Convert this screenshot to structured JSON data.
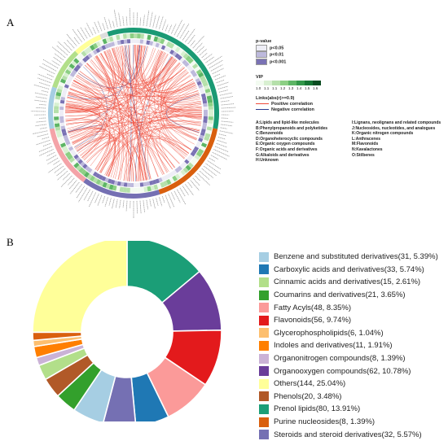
{
  "panel_a": {
    "label": "A",
    "pvalue_title": "p-value",
    "pvalue_items": [
      {
        "label": "p<0.05",
        "color": "#eeeef6"
      },
      {
        "label": "p<0.01",
        "color": "#bdb9dc"
      },
      {
        "label": "p<0.001",
        "color": "#7a72b4"
      }
    ],
    "vip_title": "VIP",
    "vip_ticks": [
      "1.0",
      "1.1",
      "1.1",
      "1.2",
      "1.3",
      "1.4",
      "1.5",
      "1.6"
    ],
    "vip_colors": [
      "#f3fbf1",
      "#d8f0d1",
      "#b5e0aa",
      "#8ccf84",
      "#5db565",
      "#33974a",
      "#167433",
      "#0a4c21"
    ],
    "links_title": "Links(abs(r)>=0.9)",
    "positive_label": "Positive correlation",
    "negative_label": "Negative correlation",
    "positive_color": "#ef4b3a",
    "negative_color": "#2b3a8f",
    "classes_left": [
      "A:Lipids and lipid-like molecules",
      "B:Phenylpropanoids and polyketides",
      "C:Benzenoids",
      "D:Organoheterocyclic compounds",
      "E:Organic oxygen compounds",
      "F:Organic acids and derivatives",
      "G:Alkaloids and derivatives",
      "H:Unknown"
    ],
    "classes_right": [
      "I:Lignans, neolignans and related compounds",
      "J:Nucleosides, nucleotides, and analogues",
      "K:Organic nitrogen compounds",
      "L:Anthracenes",
      "M:Flavonoids",
      "N:Kavalactones",
      "O:Stilbenes"
    ],
    "class_sectors": [
      {
        "class": "A",
        "color": "#1a9a74"
      },
      {
        "class": "B",
        "color": "#d95f0e"
      },
      {
        "class": "C",
        "color": "#7570b3"
      },
      {
        "class": "D",
        "color": "#f4a3a8"
      },
      {
        "class": "E",
        "color": "#a6cee3"
      },
      {
        "class": "F",
        "color": "#b2df8a"
      },
      {
        "class": "G",
        "color": "#ffff99"
      },
      {
        "class": "H",
        "color": "#dddddd"
      }
    ]
  },
  "panel_b": {
    "label": "B"
  },
  "chart_data": {
    "type": "pie",
    "donut": true,
    "title": "",
    "slices": [
      {
        "name": "Prenol lipids",
        "count": 80,
        "percent": 13.91,
        "color": "#1b9e77",
        "legend": "Prenol lipids(80, 13.91%)"
      },
      {
        "name": "Organooxygen compounds",
        "count": 62,
        "percent": 10.78,
        "color": "#6a3d9a",
        "legend": "Organooxygen compounds(62, 10.78%)"
      },
      {
        "name": "Flavonoids",
        "count": 56,
        "percent": 9.74,
        "color": "#e31a1c",
        "legend": "Flavonoids(56, 9.74%)"
      },
      {
        "name": "Fatty Acyls",
        "count": 48,
        "percent": 8.35,
        "color": "#fb9a99",
        "legend": "Fatty Acyls(48, 8.35%)"
      },
      {
        "name": "Carboxylic acids and derivatives",
        "count": 33,
        "percent": 5.74,
        "color": "#1f78b4",
        "legend": "Carboxylic acids and derivatives(33, 5.74%)"
      },
      {
        "name": "Steroids and steroid derivatives",
        "count": 32,
        "percent": 5.57,
        "color": "#7570b3",
        "legend": "Steroids and steroid derivatives(32, 5.57%)"
      },
      {
        "name": "Benzene and substituted derivatives",
        "count": 31,
        "percent": 5.39,
        "color": "#a6cee3",
        "legend": "Benzene and substituted derivatives(31, 5.39%)"
      },
      {
        "name": "Coumarins and derivatives",
        "count": 21,
        "percent": 3.65,
        "color": "#33a02c",
        "legend": "Coumarins and derivatives(21, 3.65%)"
      },
      {
        "name": "Phenols",
        "count": 20,
        "percent": 3.48,
        "color": "#b15928",
        "legend": "Phenols(20, 3.48%)"
      },
      {
        "name": "Cinnamic acids and derivatives",
        "count": 15,
        "percent": 2.61,
        "color": "#b2df8a",
        "legend": "Cinnamic acids and derivatives(15, 2.61%)"
      },
      {
        "name": "Organonitrogen compounds",
        "count": 8,
        "percent": 1.39,
        "color": "#cab2d6",
        "legend": "Organonitrogen compounds(8, 1.39%)"
      },
      {
        "name": "Indoles and derivatives",
        "count": 11,
        "percent": 1.91,
        "color": "#ff7f00",
        "legend": "Indoles and derivatives(11, 1.91%)"
      },
      {
        "name": "Glycerophospholipids",
        "count": 6,
        "percent": 1.04,
        "color": "#fdbf6f",
        "legend": "Glycerophospholipids(6, 1.04%)"
      },
      {
        "name": "Purine nucleosides",
        "count": 8,
        "percent": 1.39,
        "color": "#d95f0e",
        "legend": "Purine nucleosides(8, 1.39%)"
      },
      {
        "name": "Others",
        "count": 144,
        "percent": 25.04,
        "color": "#ffff99",
        "legend": "Others(144, 25.04%)"
      }
    ],
    "legend_order": [
      6,
      4,
      9,
      7,
      3,
      2,
      12,
      11,
      10,
      1,
      14,
      8,
      0,
      13,
      5
    ],
    "legend_placement": "right"
  }
}
